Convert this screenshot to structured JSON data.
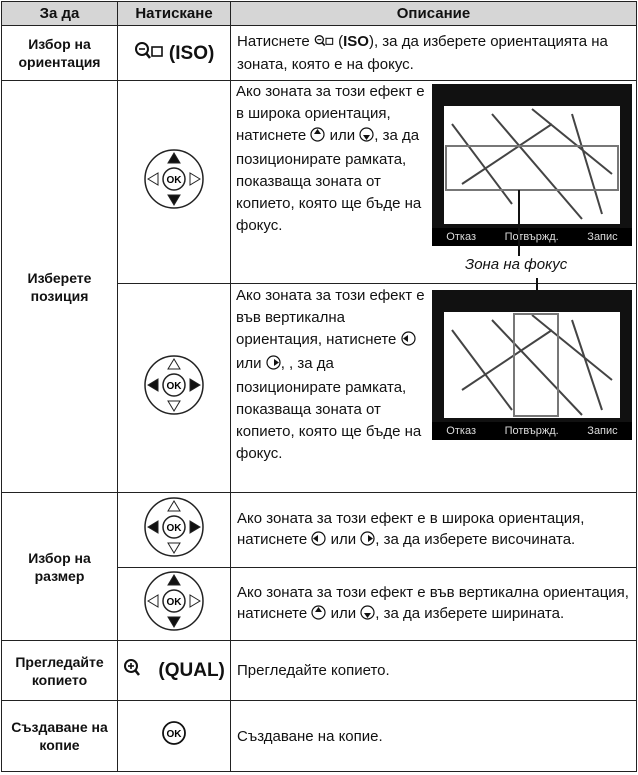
{
  "header": {
    "columns": [
      "За да",
      "Натискане",
      "Описание"
    ]
  },
  "icons": {
    "ok": "OK"
  },
  "rows": [
    {
      "action": "Избор на ориентация",
      "button": "ISO",
      "description": [
        "Натиснете",
        "ISO",
        ", за да изберете ориентацията на зоната, която е на фокус."
      ]
    },
    {
      "action": "Изберете позиция",
      "steps": [
        {
          "description": [
            "Ако зоната за този ефект е в широка ориентация, натиснете",
            "или",
            ", за да позиционирате рамката, показваща зоната от копието, която ще бъде на фокус."
          ]
        },
        {
          "description": [
            "Ако зоната за този ефект е във вертикална ориентация, натиснете",
            "или",
            ", за да позиционирате рамката, показваща зоната от копието, която ще бъде на фокус."
          ]
        }
      ],
      "screen": {
        "buttons": [
          "Отказ",
          "Потвържд.",
          "Запис"
        ],
        "caption": "Зона на фокус"
      }
    },
    {
      "action": "Избор на размер",
      "steps": [
        {
          "description": [
            "Ако зоната за този ефект е в широка ориентация, натиснете",
            "или",
            ", за да изберете височината."
          ]
        },
        {
          "description": [
            "Ако зоната за този ефект е във вертикална ориентация, натиснете",
            "или",
            ", за да изберете ширината."
          ]
        }
      ]
    },
    {
      "action": "Прегледайте копието",
      "button": "QUAL",
      "description": "Прегледайте копието."
    },
    {
      "action": "Създаване на копие",
      "description": "Създаване на копие."
    }
  ]
}
